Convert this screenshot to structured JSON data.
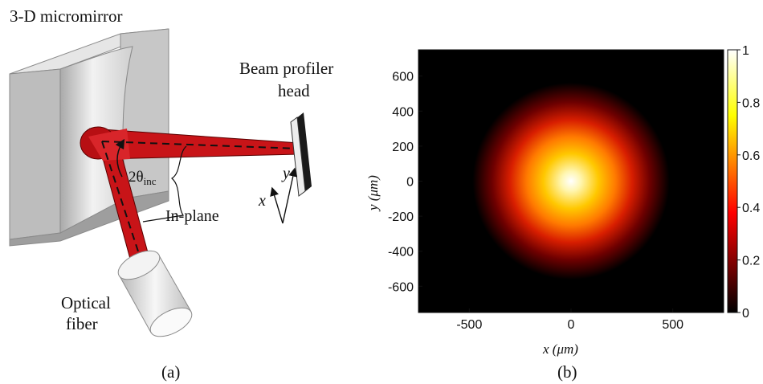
{
  "panel_a": {
    "label": "(a)",
    "micromirror_label": "3-D micromirror",
    "profiler_label_line1": "Beam profiler",
    "profiler_label_line2": "head",
    "angle_label_main": "2θ",
    "angle_label_sub": "inc",
    "inplane_label": "In-plane",
    "fiber_label_line1": "Optical",
    "fiber_label_line2": "fiber",
    "axis_x": "x",
    "axis_y": "y",
    "beam_color": "#c81418"
  },
  "panel_b": {
    "label": "(b)",
    "x_label_var": "x",
    "x_label_unit": "(μm)",
    "y_label_var": "y",
    "y_label_unit": "(μm)",
    "colormap": "hot"
  },
  "chart_data": {
    "type": "heatmap",
    "title": "",
    "x_range": [
      -750,
      750
    ],
    "y_range": [
      -750,
      750
    ],
    "x_ticks": [
      -500,
      0,
      500
    ],
    "x_tick_labels": [
      "-500",
      "0",
      "500"
    ],
    "y_ticks": [
      -600,
      -400,
      -200,
      0,
      200,
      400,
      600
    ],
    "y_tick_labels": [
      "-600",
      "-400",
      "-200",
      "0",
      "200",
      "400",
      "600"
    ],
    "colorbar_range": [
      0,
      1
    ],
    "colorbar_ticks": [
      0,
      0.2,
      0.4,
      0.6,
      0.8,
      1
    ],
    "colorbar_tick_labels": [
      "0",
      "0.2",
      "0.4",
      "0.6",
      "0.8",
      "1"
    ],
    "beam_center": [
      0,
      0
    ],
    "beam_radius_1e2": 220,
    "peak_intensity": 1,
    "grid": false
  }
}
